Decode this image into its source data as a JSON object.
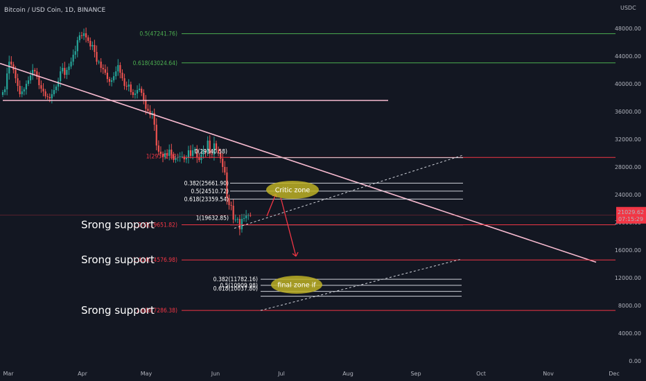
{
  "header": {
    "title": "Bitcoin / USD Coin, 1D, BINANCE"
  },
  "chart_data": {
    "type": "candlestick",
    "currency": "USDC",
    "x_ticks": [
      "Mar",
      "Apr",
      "May",
      "Jun",
      "Jul",
      "Aug",
      "Sep",
      "Oct",
      "Nov",
      "Dec"
    ],
    "y_ticks": [
      "48000.00",
      "44000.00",
      "40000.00",
      "36000.00",
      "32000.00",
      "28000.00",
      "24000.00",
      "20000.00",
      "16000.00",
      "12000.00",
      "8000.00",
      "4000.00",
      "0.00"
    ],
    "ylim": [
      0,
      49500
    ],
    "grid": false,
    "price_badge": {
      "price": "21029.62",
      "countdown": "07:15:29"
    },
    "closes": [
      38800,
      39200,
      41500,
      43200,
      42800,
      42000,
      40800,
      39700,
      38500,
      38900,
      39200,
      40000,
      40500,
      41200,
      42000,
      41800,
      41000,
      39800,
      39300,
      38900,
      38200,
      38100,
      37900,
      38500,
      39100,
      39600,
      40400,
      41800,
      42300,
      41300,
      42000,
      42500,
      43200,
      44200,
      44700,
      46300,
      47000,
      46900,
      47300,
      46700,
      46200,
      45400,
      45600,
      44600,
      43200,
      43200,
      42300,
      42100,
      41600,
      40700,
      40300,
      40500,
      41100,
      41800,
      42700,
      41600,
      40800,
      39700,
      39600,
      39900,
      38800,
      38400,
      38600,
      39100,
      39300,
      38700,
      37700,
      36400,
      36100,
      35500,
      35800,
      34100,
      31100,
      30200,
      29900,
      29400,
      30000,
      29600,
      30500,
      29800,
      29000,
      29300,
      29400,
      29500,
      29500,
      29100,
      29300,
      30400,
      29600,
      30400,
      30600,
      29400,
      29000,
      29800,
      30300,
      30100,
      31800,
      29900,
      29800,
      31400,
      30500,
      30000,
      29200,
      28000,
      27200,
      23500,
      22500,
      22400,
      20400,
      20400,
      20500,
      19000,
      20500,
      20600,
      21000,
      21050,
      21029.62
    ],
    "fib_sets": [
      {
        "name": "upper",
        "levels": [
          {
            "label": "0.5(47241.76)",
            "value": 47241.76
          },
          {
            "label": "0.618(43024.64)",
            "value": 43024.64
          }
        ]
      },
      {
        "name": "middle",
        "levels": [
          {
            "label": "0(29340.58)",
            "value": 29340.58
          },
          {
            "label": "1(29372.82)",
            "value": 29372.82
          },
          {
            "label": "0.382(25661.90)",
            "value": 25661.9
          },
          {
            "label": "0.5(24510.72)",
            "value": 24510.72
          },
          {
            "label": "0.618(23359.54)",
            "value": 23359.54
          },
          {
            "label": "1(19632.85)",
            "value": 19632.85
          },
          {
            "label": "1.272(19651.82)",
            "value": 19651.82
          }
        ]
      },
      {
        "name": "lower",
        "levels": [
          {
            "label": "1.414(14576.98)",
            "value": 14576.98
          },
          {
            "label": "0.382(11782.16)",
            "value": 11782.16
          },
          {
            "label": "0.5(10909.98)",
            "value": 10909.98
          },
          {
            "label": "0.618(10037.80)",
            "value": 10037.8
          },
          {
            "label": "1.618(7286.38)",
            "value": 7286.38
          }
        ]
      }
    ],
    "annotations": {
      "support1": "Srong support",
      "support2": "Srong support",
      "support3": "Srong support",
      "critic": "Critic zone",
      "final": "final zone if"
    },
    "colors": {
      "background": "#131722",
      "bull": "#26a69a",
      "bear": "#ef5350",
      "fib_green": "#4caf50",
      "fib_red": "#f23645",
      "trendline": "#f8bbd0",
      "zone_fill": "#bdb024",
      "axis_text": "#b2b5be",
      "price_badge": "#f23645"
    }
  }
}
